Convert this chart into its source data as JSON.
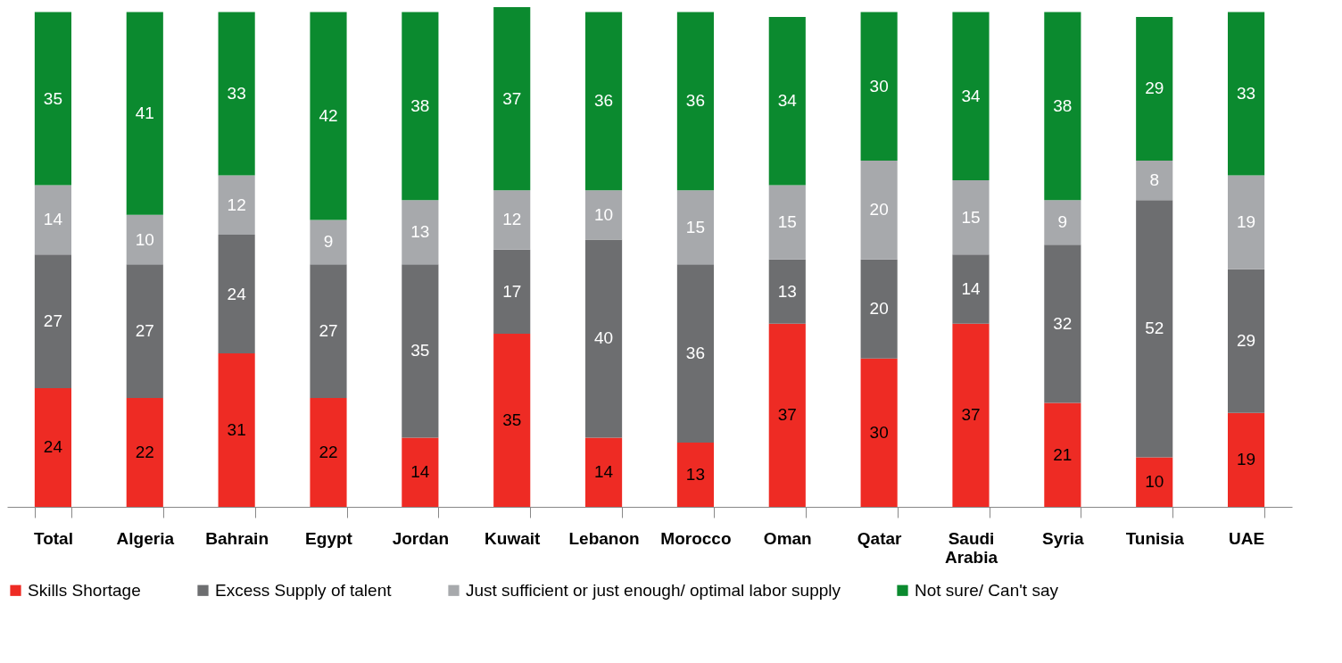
{
  "chart_data": {
    "type": "bar",
    "stacked": true,
    "data_labels": true,
    "legend": "bottom",
    "grid": false,
    "categories": [
      "Total",
      "Algeria",
      "Bahrain",
      "Egypt",
      "Jordan",
      "Kuwait",
      "Lebanon",
      "Morocco",
      "Oman",
      "Qatar",
      "Saudi Arabia",
      "Syria",
      "Tunisia",
      "UAE"
    ],
    "series": [
      {
        "name": "Skills Shortage",
        "color": "#ee2b24",
        "values": [
          24,
          22,
          31,
          22,
          14,
          35,
          14,
          13,
          37,
          30,
          37,
          21,
          10,
          19
        ]
      },
      {
        "name": "Excess Supply of talent",
        "color": "#6d6e70",
        "values": [
          27,
          27,
          24,
          27,
          35,
          17,
          40,
          36,
          13,
          20,
          14,
          32,
          52,
          29
        ]
      },
      {
        "name": "Just sufficient or just enough/ optimal labor supply",
        "color": "#a7a9ac",
        "values": [
          14,
          10,
          12,
          9,
          13,
          12,
          10,
          15,
          15,
          20,
          15,
          9,
          8,
          19
        ]
      },
      {
        "name": "Not sure/ Can't say",
        "color": "#0b8a2f",
        "values": [
          35,
          41,
          33,
          42,
          38,
          37,
          36,
          36,
          34,
          30,
          34,
          38,
          29,
          33
        ]
      }
    ]
  }
}
